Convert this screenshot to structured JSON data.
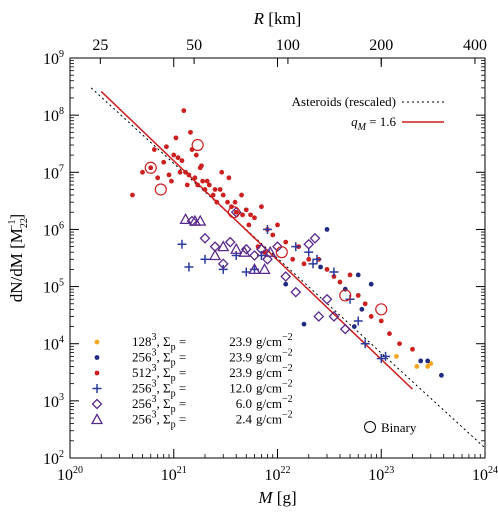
{
  "chart_data": {
    "type": "scatter",
    "x_axis": {
      "label_italic": "M",
      "label_rest": " [g]",
      "scale": "log",
      "range": [
        1e+20,
        1e+24
      ],
      "ticks": [
        {
          "value": 1e+20,
          "base": "10",
          "exp": "20"
        },
        {
          "value": 1e+21,
          "base": "10",
          "exp": "21"
        },
        {
          "value": 1e+22,
          "base": "10",
          "exp": "22"
        },
        {
          "value": 1e+23,
          "base": "10",
          "exp": "23"
        },
        {
          "value": 1e+24,
          "base": "10",
          "exp": "24"
        }
      ]
    },
    "top_axis": {
      "label_italic": "R",
      "label_rest": " [km]",
      "scale": "log",
      "tick_labels": [
        {
          "text": "25",
          "mass": 1.96e+20
        },
        {
          "text": "50",
          "mass": 1.57e+21
        },
        {
          "text": "100",
          "mass": 1.26e+22
        },
        {
          "text": "200",
          "mass": 1e+23
        },
        {
          "text": "400",
          "mass": 8e+23
        }
      ]
    },
    "y_axis": {
      "label_main": "dN/dM [M",
      "label_sub": "22",
      "label_sup": "−1",
      "label_end": "]",
      "scale": "log",
      "range": [
        100,
        1000000000.0
      ],
      "ticks": [
        {
          "value": 100,
          "base": "10",
          "exp": "2"
        },
        {
          "value": 1000,
          "base": "10",
          "exp": "3"
        },
        {
          "value": 10000,
          "base": "10",
          "exp": "4"
        },
        {
          "value": 100000,
          "base": "10",
          "exp": "5"
        },
        {
          "value": 1000000,
          "base": "10",
          "exp": "6"
        },
        {
          "value": 10000000,
          "base": "10",
          "exp": "7"
        },
        {
          "value": 100000000,
          "base": "10",
          "exp": "8"
        },
        {
          "value": 1000000000,
          "base": "10",
          "exp": "9"
        }
      ]
    },
    "grid": false,
    "legend_placement": "bottom-left",
    "lines": [
      {
        "label": "Asteroids (rescaled)",
        "style": "dotted",
        "color": "#000000",
        "x": [
          1.6e+20,
          1e+24
        ],
        "y": [
          300000000.0,
          150
        ]
      },
      {
        "label_italic": "q",
        "label_sub": "M",
        "label_rest": " = 1.6",
        "style": "solid",
        "color": "#cc1f1f",
        "x": [
          2e+20,
          2e+23
        ],
        "y": [
          260000000.0,
          1600.0
        ]
      }
    ],
    "series": [
      {
        "label_base": "128",
        "label_exp": "3",
        "sigma": "23.9",
        "marker": "dot",
        "color": "#f5a623",
        "x": [
          2.8e+23,
          2.2e+23,
          3e+23,
          1.4e+23
        ],
        "y": [
          4000.0,
          4000.0,
          4500.0,
          6000.0
        ]
      },
      {
        "label_base": "256",
        "label_exp": "3",
        "sigma": "23.9",
        "marker": "dot",
        "color": "#1f2a80",
        "x": [
          2.6e+22,
          4.5e+22,
          6e+22,
          8e+22,
          1.8e+22,
          2.4e+23,
          2.8e+23,
          3.8e+23,
          1.2e+22,
          5.5e+22,
          6.5e+22,
          3e+22
        ],
        "y": [
          220000.0,
          90000.0,
          160000.0,
          110000.0,
          22000.0,
          5000.0,
          5000.0,
          2800.0,
          110000.0,
          20000.0,
          40000.0,
          1000000.0
        ]
      },
      {
        "label_base": "512",
        "label_exp": "3",
        "sigma": "23.9",
        "marker": "dot",
        "color": "#cc1f1f",
        "x": [
          5e+20,
          6e+20,
          7e+20,
          8e+20,
          9e+20,
          1e+21,
          1.1e+21,
          1.2e+21,
          1.3e+21,
          1.4e+21,
          1.5e+21,
          1.6e+21,
          1.7e+21,
          1.8e+21,
          1.9e+21,
          2e+21,
          2.2e+21,
          2.4e+21,
          2.6e+21,
          2.8e+21,
          3e+21,
          3.3e+21,
          3.6e+21,
          4e+21,
          4.5e+21,
          5e+21,
          5.5e+21,
          6e+21,
          7e+21,
          8e+21,
          9e+21,
          1e+22,
          1.2e+22,
          1.4e+22,
          1.6e+22,
          1.8e+22,
          2e+22,
          2.5e+22,
          3e+22,
          3.5e+22,
          4e+22,
          5e+22,
          6e+22,
          7e+22,
          8e+22,
          1e+23,
          1.2e+23,
          1.5e+23,
          2e+23,
          8.5e+20,
          1.05e+21,
          1.25e+21,
          1.45e+21,
          1.65e+21,
          1.85e+21,
          2.1e+21,
          2.5e+21,
          2.9e+21,
          3.4e+21,
          3.9e+21,
          4.6e+21,
          5.3e+21,
          6.5e+21,
          7.5e+21,
          4e+20,
          6.5e+20,
          9.5e+20,
          1.15e+21,
          1.35e+21
        ],
        "y": [
          10000000.0,
          12000000.0,
          8000000.0,
          15000000.0,
          9000000.0,
          20000000.0,
          18000000.0,
          16000000.0,
          10000000.0,
          9000000.0,
          25000000.0,
          8000000.0,
          6000000.0,
          12000000.0,
          7000000.0,
          5000000.0,
          6000000.0,
          4000000.0,
          3000000.0,
          5000000.0,
          4000000.0,
          3000000.0,
          2500000.0,
          2000000.0,
          4000000.0,
          2200000.0,
          1800000.0,
          1600000.0,
          2500000.0,
          1000000.0,
          800000.0,
          1200000.0,
          600000.0,
          300000.0,
          500000.0,
          250000.0,
          300000.0,
          300000.0,
          200000.0,
          150000.0,
          120000.0,
          160000.0,
          70000.0,
          50000.0,
          30000.0,
          25000.0,
          15000.0,
          10000.0,
          8000.0,
          28000000.0,
          40000000.0,
          120000000.0,
          50000000.0,
          20000000.0,
          13000000.0,
          7000000.0,
          5000000.0,
          10000000.0,
          8000000.0,
          3000000.0,
          1800000.0,
          1200000.0,
          500000.0,
          400000.0,
          4000000.0,
          25000000.0,
          7000000.0,
          10000000.0,
          6000000.0
        ]
      },
      {
        "label_base": "256",
        "label_exp": "3",
        "sigma": "12.0",
        "marker": "plus",
        "color": "#2a3a9e",
        "x": [
          1.2e+21,
          1.4e+21,
          2e+21,
          3e+21,
          4e+21,
          5e+21,
          6e+21,
          7e+21,
          8e+21,
          1.5e+22,
          2e+22,
          2.2e+22,
          2.4e+22,
          3.5e+22,
          5e+22,
          6e+22,
          1e+23,
          1.1e+23,
          7e+22
        ],
        "y": [
          550000.0,
          220000.0,
          300000.0,
          200000.0,
          350000.0,
          180000.0,
          200000.0,
          350000.0,
          1000000.0,
          500000.0,
          400000.0,
          250000.0,
          300000.0,
          180000.0,
          60000.0,
          25000.0,
          5500.0,
          6000.0,
          10000.0
        ]
      },
      {
        "label_base": "256",
        "label_exp": "3",
        "sigma": "6.0",
        "marker": "diamond",
        "color": "#5a2a8c",
        "x": [
          1.5e+21,
          2e+21,
          2.5e+21,
          3e+21,
          3.5e+21,
          4e+21,
          5e+21,
          6e+21,
          7e+21,
          8e+21,
          1e+22,
          1.2e+22,
          1.5e+22,
          2e+22,
          2.3e+22,
          2.5e+22,
          3e+22,
          3.5e+22,
          4.5e+22
        ],
        "y": [
          1400000.0,
          700000.0,
          500000.0,
          250000.0,
          600000.0,
          2000000.0,
          450000.0,
          350000.0,
          450000.0,
          300000.0,
          500000.0,
          150000.0,
          80000.0,
          550000.0,
          700000.0,
          30000.0,
          60000.0,
          30000.0,
          18000.0
        ]
      },
      {
        "label_base": "256",
        "label_exp": "3",
        "sigma": "2.4",
        "marker": "triangle",
        "color": "#5a2a8c",
        "x": [
          1.3e+21,
          1.6e+21,
          1.8e+21,
          2.5e+21,
          3e+21,
          4e+21,
          4.8e+21,
          6e+21,
          7.5e+21,
          8.5e+21
        ],
        "y": [
          1500000.0,
          1400000.0,
          1400000.0,
          350000.0,
          500000.0,
          450000.0,
          400000.0,
          200000.0,
          200000.0,
          400000.0
        ]
      }
    ],
    "binaries": {
      "label": "Binary",
      "x": [
        6e+20,
        7.5e+20,
        1.7e+21,
        3.8e+21,
        1.1e+22,
        4.5e+22,
        1e+23
      ],
      "y": [
        12000000.0,
        5000000.0,
        30000000.0,
        2000000.0,
        400000.0,
        70000.0,
        40000.0
      ]
    },
    "legend_common": {
      "sigma_symbol": "Σ",
      "sigma_sub": "p",
      "equals": " = ",
      "unit": "g/cm",
      "unit_exp": "−2"
    }
  }
}
